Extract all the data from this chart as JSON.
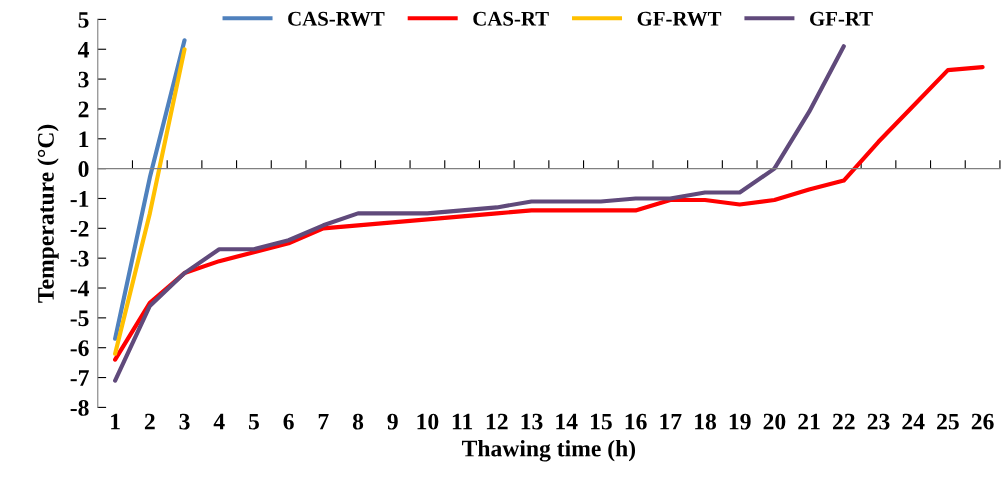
{
  "chart_data": {
    "type": "line",
    "xlabel": "Thawing time (h)",
    "ylabel": "Temperature (°C)",
    "categories": [
      "1",
      "2",
      "3",
      "4",
      "5",
      "6",
      "7",
      "8",
      "9",
      "10",
      "11",
      "12",
      "13",
      "14",
      "15",
      "16",
      "17",
      "18",
      "19",
      "20",
      "21",
      "22",
      "23",
      "24",
      "25",
      "26"
    ],
    "series": [
      {
        "name": "CAS-RWT",
        "color": "#4f81bd",
        "values": [
          -5.7,
          -0.3,
          4.3,
          null,
          null,
          null,
          null,
          null,
          null,
          null,
          null,
          null,
          null,
          null,
          null,
          null,
          null,
          null,
          null,
          null,
          null,
          null,
          null,
          null,
          null,
          null
        ]
      },
      {
        "name": "CAS-RT",
        "color": "#ff0000",
        "values": [
          -6.4,
          -4.5,
          -3.5,
          -3.1,
          -2.8,
          -2.5,
          -2.0,
          -1.9,
          -1.8,
          -1.7,
          -1.6,
          -1.5,
          -1.4,
          -1.4,
          -1.4,
          -1.4,
          -1.05,
          -1.05,
          -1.2,
          -1.05,
          -0.7,
          -0.4,
          0.9,
          2.1,
          3.3,
          3.4
        ]
      },
      {
        "name": "GF-RWT",
        "color": "#ffc000",
        "values": [
          -6.2,
          -1.5,
          4.0,
          null,
          null,
          null,
          null,
          null,
          null,
          null,
          null,
          null,
          null,
          null,
          null,
          null,
          null,
          null,
          null,
          null,
          null,
          null,
          null,
          null,
          null,
          null
        ]
      },
      {
        "name": "GF-RT",
        "color": "#604a7b",
        "values": [
          -7.1,
          -4.6,
          -3.5,
          -2.7,
          -2.7,
          -2.4,
          -1.9,
          -1.5,
          -1.5,
          -1.5,
          -1.4,
          -1.3,
          -1.1,
          -1.1,
          -1.1,
          -1.0,
          -1.0,
          -0.8,
          -0.8,
          0.0,
          1.9,
          4.1,
          null,
          null,
          null,
          null
        ]
      }
    ],
    "ylim": [
      -8,
      5
    ],
    "yticks": [
      -8,
      -7,
      -6,
      -5,
      -4,
      -3,
      -2,
      -1,
      0,
      1,
      2,
      3,
      4,
      5
    ],
    "legend": "top",
    "marker": "none",
    "line_style": "solid"
  }
}
